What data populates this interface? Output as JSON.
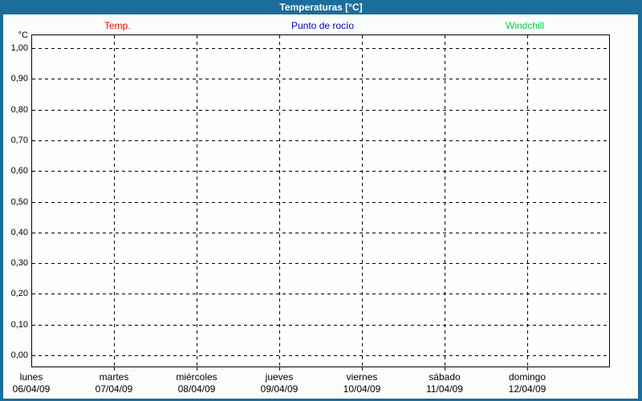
{
  "window": {
    "title": "Temperaturas [°C]"
  },
  "legend": {
    "items": [
      {
        "label": "Temp.",
        "color": "#ff0000"
      },
      {
        "label": "Punto de rocío",
        "color": "#0000cd"
      },
      {
        "label": "Windchill",
        "color": "#00cc44"
      }
    ]
  },
  "chart_data": {
    "type": "line",
    "title": "Temperaturas [°C]",
    "ylabel": "°C",
    "ylim": [
      0.0,
      1.0
    ],
    "y_tick_step": 0.1,
    "y_ticks": [
      "1,00",
      "0,90",
      "0,80",
      "0,70",
      "0,60",
      "0,50",
      "0,40",
      "0,30",
      "0,20",
      "0,10",
      "0,00"
    ],
    "grid": "dashed black, horizontal and vertical (day boundaries)",
    "legend_position": "top",
    "days": [
      {
        "name": "lunes",
        "date": "06/04/09"
      },
      {
        "name": "martes",
        "date": "07/04/09"
      },
      {
        "name": "miércoles",
        "date": "08/04/09"
      },
      {
        "name": "jueves",
        "date": "09/04/09"
      },
      {
        "name": "viernes",
        "date": "10/04/09"
      },
      {
        "name": "sábado",
        "date": "11/04/09"
      },
      {
        "name": "domingo",
        "date": "12/04/09"
      }
    ],
    "series": [
      {
        "name": "Temp.",
        "color": "#ff0000",
        "values": []
      },
      {
        "name": "Punto de rocío",
        "color": "#0000cd",
        "values": []
      },
      {
        "name": "Windchill",
        "color": "#00cc44",
        "values": []
      }
    ]
  },
  "colors": {
    "frame": "#1c6d9b",
    "title_text": "#ffffff",
    "content_bg": "#fbfdfb",
    "plot_bg": "#fdfffd",
    "grid": "#000000",
    "axis_text": "#000000"
  }
}
